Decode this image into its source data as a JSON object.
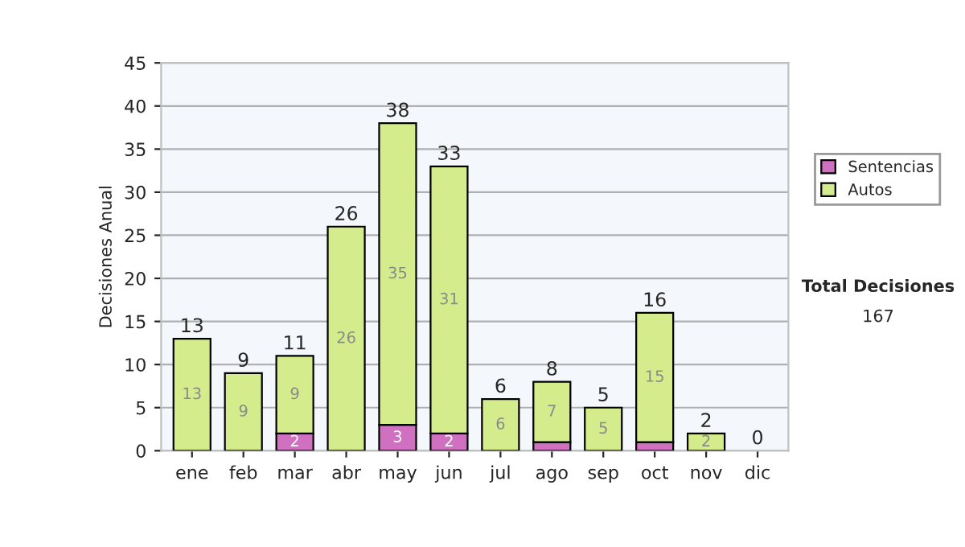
{
  "chart_data": {
    "type": "bar",
    "stacked": true,
    "ylabel": "Decisiones Anual",
    "categories": [
      "ene",
      "feb",
      "mar",
      "abr",
      "may",
      "jun",
      "jul",
      "ago",
      "sep",
      "oct",
      "nov",
      "dic"
    ],
    "series": [
      {
        "name": "Sentencias",
        "color": "#d070c0",
        "values": [
          0,
          0,
          2,
          0,
          3,
          2,
          0,
          1,
          0,
          1,
          0,
          0
        ],
        "value_labels": [
          null,
          null,
          "2",
          null,
          "3",
          "2",
          null,
          null,
          null,
          null,
          null,
          null
        ]
      },
      {
        "name": "Autos",
        "color": "#d4ec8c",
        "values": [
          13,
          9,
          9,
          26,
          35,
          31,
          6,
          7,
          5,
          15,
          2,
          0
        ],
        "value_labels": [
          "13",
          "9",
          "9",
          "26",
          "35",
          "31",
          "6",
          "7",
          "5",
          "15",
          "2",
          null
        ]
      }
    ],
    "totals": [
      "13",
      "9",
      "11",
      "26",
      "38",
      "33",
      "6",
      "8",
      "5",
      "16",
      "2",
      "0"
    ],
    "ylim": [
      0,
      45
    ],
    "yticks": [
      0,
      5,
      10,
      15,
      20,
      25,
      30,
      35,
      40,
      45
    ],
    "grid": "y",
    "legend": "right",
    "annotations": [
      "Total Decisiones",
      "167"
    ]
  }
}
